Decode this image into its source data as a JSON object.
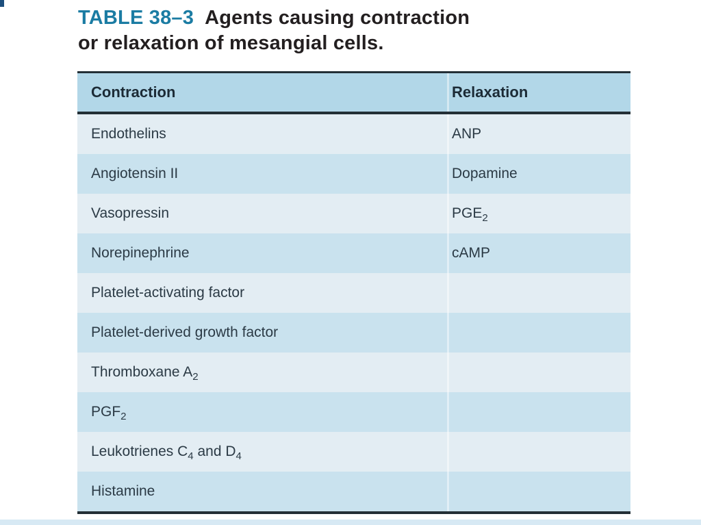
{
  "page": {
    "background": "#ffffff",
    "bottom_band_color": "#d7e9f4",
    "corner_mark_color": "#1d4f7d"
  },
  "heading": {
    "table_label": "TABLE 38–3",
    "title_line1": "Agents causing contraction",
    "title_line2": "or relaxation of mesangial cells.",
    "label_color": "#1b7ca3"
  },
  "table": {
    "columns": [
      {
        "label": "Contraction"
      },
      {
        "label": "Relaxation"
      }
    ],
    "rows": [
      {
        "contraction": "Endothelins",
        "relaxation": "ANP"
      },
      {
        "contraction": "Angiotensin II",
        "relaxation": "Dopamine"
      },
      {
        "contraction": "Vasopressin",
        "relaxation": "PGE_2"
      },
      {
        "contraction": "Norepinephrine",
        "relaxation": "cAMP"
      },
      {
        "contraction": "Platelet-activating factor",
        "relaxation": ""
      },
      {
        "contraction": "Platelet-derived growth factor",
        "relaxation": ""
      },
      {
        "contraction": "Thromboxane A_2",
        "relaxation": ""
      },
      {
        "contraction": "PGF_2",
        "relaxation": ""
      },
      {
        "contraction": "Leukotrienes C_4 and D_4",
        "relaxation": ""
      },
      {
        "contraction": "Histamine",
        "relaxation": ""
      }
    ],
    "colors": {
      "header_bg": "#b2d7e8",
      "row_light": "#e3edf3",
      "row_dark": "#c9e2ee",
      "rule": "#232f36",
      "text": "#2b3a45"
    }
  }
}
